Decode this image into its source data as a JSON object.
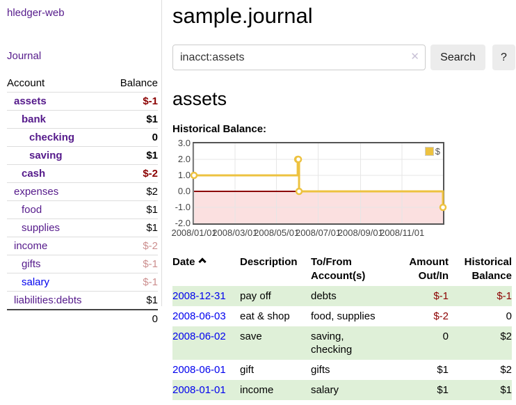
{
  "app_title": "hledger-web",
  "nav": {
    "journal": "Journal"
  },
  "colors": {
    "link_purple": "#551a8b",
    "link_blue": "#0000ee",
    "negative_red": "#8b0000",
    "row_stripe_green": "#dff0d8",
    "chart_line_gold": "#edc240"
  },
  "sidebar": {
    "headers": {
      "account": "Account",
      "balance": "Balance"
    },
    "rows": [
      {
        "name": "assets",
        "balance": "$-1",
        "depth": 1,
        "matched": true,
        "balance_style": "negative"
      },
      {
        "name": "bank",
        "balance": "$1",
        "depth": 2,
        "matched": true,
        "balance_style": "normal"
      },
      {
        "name": "checking",
        "balance": "0",
        "depth": 3,
        "matched": true,
        "balance_style": "normal"
      },
      {
        "name": "saving",
        "balance": "$1",
        "depth": 3,
        "matched": true,
        "balance_style": "normal"
      },
      {
        "name": "cash",
        "balance": "$-2",
        "depth": 2,
        "matched": true,
        "balance_style": "negative"
      },
      {
        "name": "expenses",
        "balance": "$2",
        "depth": 1,
        "matched": false,
        "balance_style": "normal"
      },
      {
        "name": "food",
        "balance": "$1",
        "depth": 2,
        "matched": false,
        "balance_style": "normal"
      },
      {
        "name": "supplies",
        "balance": "$1",
        "depth": 2,
        "matched": false,
        "balance_style": "normal"
      },
      {
        "name": "income",
        "balance": "$-2",
        "depth": 1,
        "matched": false,
        "balance_style": "negative-dim"
      },
      {
        "name": "gifts",
        "balance": "$-1",
        "depth": 2,
        "matched": false,
        "balance_style": "negative-dim"
      },
      {
        "name": "salary",
        "balance": "$-1",
        "depth": 2,
        "matched": false,
        "balance_style": "negative-dim",
        "link_style": "unvisited"
      },
      {
        "name": "liabilities:debts",
        "balance": "$1",
        "depth": 1,
        "matched": false,
        "balance_style": "normal"
      }
    ],
    "total": "0"
  },
  "header": {
    "title": "sample.journal"
  },
  "search": {
    "value": "inacct:assets",
    "clear_icon": "✕",
    "search_button": "Search",
    "help_button": "?"
  },
  "account_page": {
    "title": "assets",
    "section_label": "Historical Balance:"
  },
  "chart_data": {
    "type": "line",
    "title": "Historical Balance",
    "steps": true,
    "legend": {
      "label": "$",
      "position": "top-right"
    },
    "x_range": [
      "2008-01-01",
      "2008-12-31"
    ],
    "ylim": [
      -2,
      3
    ],
    "y_ticks": [
      {
        "value": 3,
        "label": "3.0"
      },
      {
        "value": 2,
        "label": "2.0"
      },
      {
        "value": 1,
        "label": "1.0"
      },
      {
        "value": 0,
        "label": "0.0"
      },
      {
        "value": -1,
        "label": "-1.0"
      },
      {
        "value": -2,
        "label": "-2.0"
      }
    ],
    "x_ticks": [
      {
        "date": "2008-01-01",
        "label": "2008/01/01"
      },
      {
        "date": "2008-03-01",
        "label": "2008/03/01"
      },
      {
        "date": "2008-05-01",
        "label": "2008/05/01"
      },
      {
        "date": "2008-07-01",
        "label": "2008/07/01"
      },
      {
        "date": "2008-09-01",
        "label": "2008/09/01"
      },
      {
        "date": "2008-11-01",
        "label": "2008/11/01"
      }
    ],
    "series": [
      {
        "name": "$",
        "color": "#edc240",
        "points": [
          {
            "date": "2008-01-01",
            "value": 1
          },
          {
            "date": "2008-06-01",
            "value": 2
          },
          {
            "date": "2008-06-02",
            "value": 2
          },
          {
            "date": "2008-06-03",
            "value": 0
          },
          {
            "date": "2008-12-31",
            "value": -1
          }
        ]
      }
    ],
    "grid_color": "#e6e6e6",
    "zero_line_color": "#8b0000",
    "negative_region_color": "#fbe0e0",
    "border_color": "#545454"
  },
  "register": {
    "headers": {
      "date": "Date",
      "description": "Description",
      "accounts": "To/From Account(s)",
      "amount": "Amount Out/In",
      "balance": "Historical Balance"
    },
    "sort": {
      "column": "date",
      "direction": "ascending"
    },
    "rows": [
      {
        "date": "2008-12-31",
        "description": "pay off",
        "accounts": "debts",
        "amount": "$-1",
        "balance": "$-1",
        "amount_negative": true,
        "balance_negative": true
      },
      {
        "date": "2008-06-03",
        "description": "eat & shop",
        "accounts": "food, supplies",
        "amount": "$-2",
        "balance": "0",
        "amount_negative": true,
        "balance_negative": false
      },
      {
        "date": "2008-06-02",
        "description": "save",
        "accounts": "saving, checking",
        "amount": "0",
        "balance": "$2",
        "amount_negative": false,
        "balance_negative": false
      },
      {
        "date": "2008-06-01",
        "description": "gift",
        "accounts": "gifts",
        "amount": "$1",
        "balance": "$2",
        "amount_negative": false,
        "balance_negative": false
      },
      {
        "date": "2008-01-01",
        "description": "income",
        "accounts": "salary",
        "amount": "$1",
        "balance": "$1",
        "amount_negative": false,
        "balance_negative": false
      }
    ]
  }
}
